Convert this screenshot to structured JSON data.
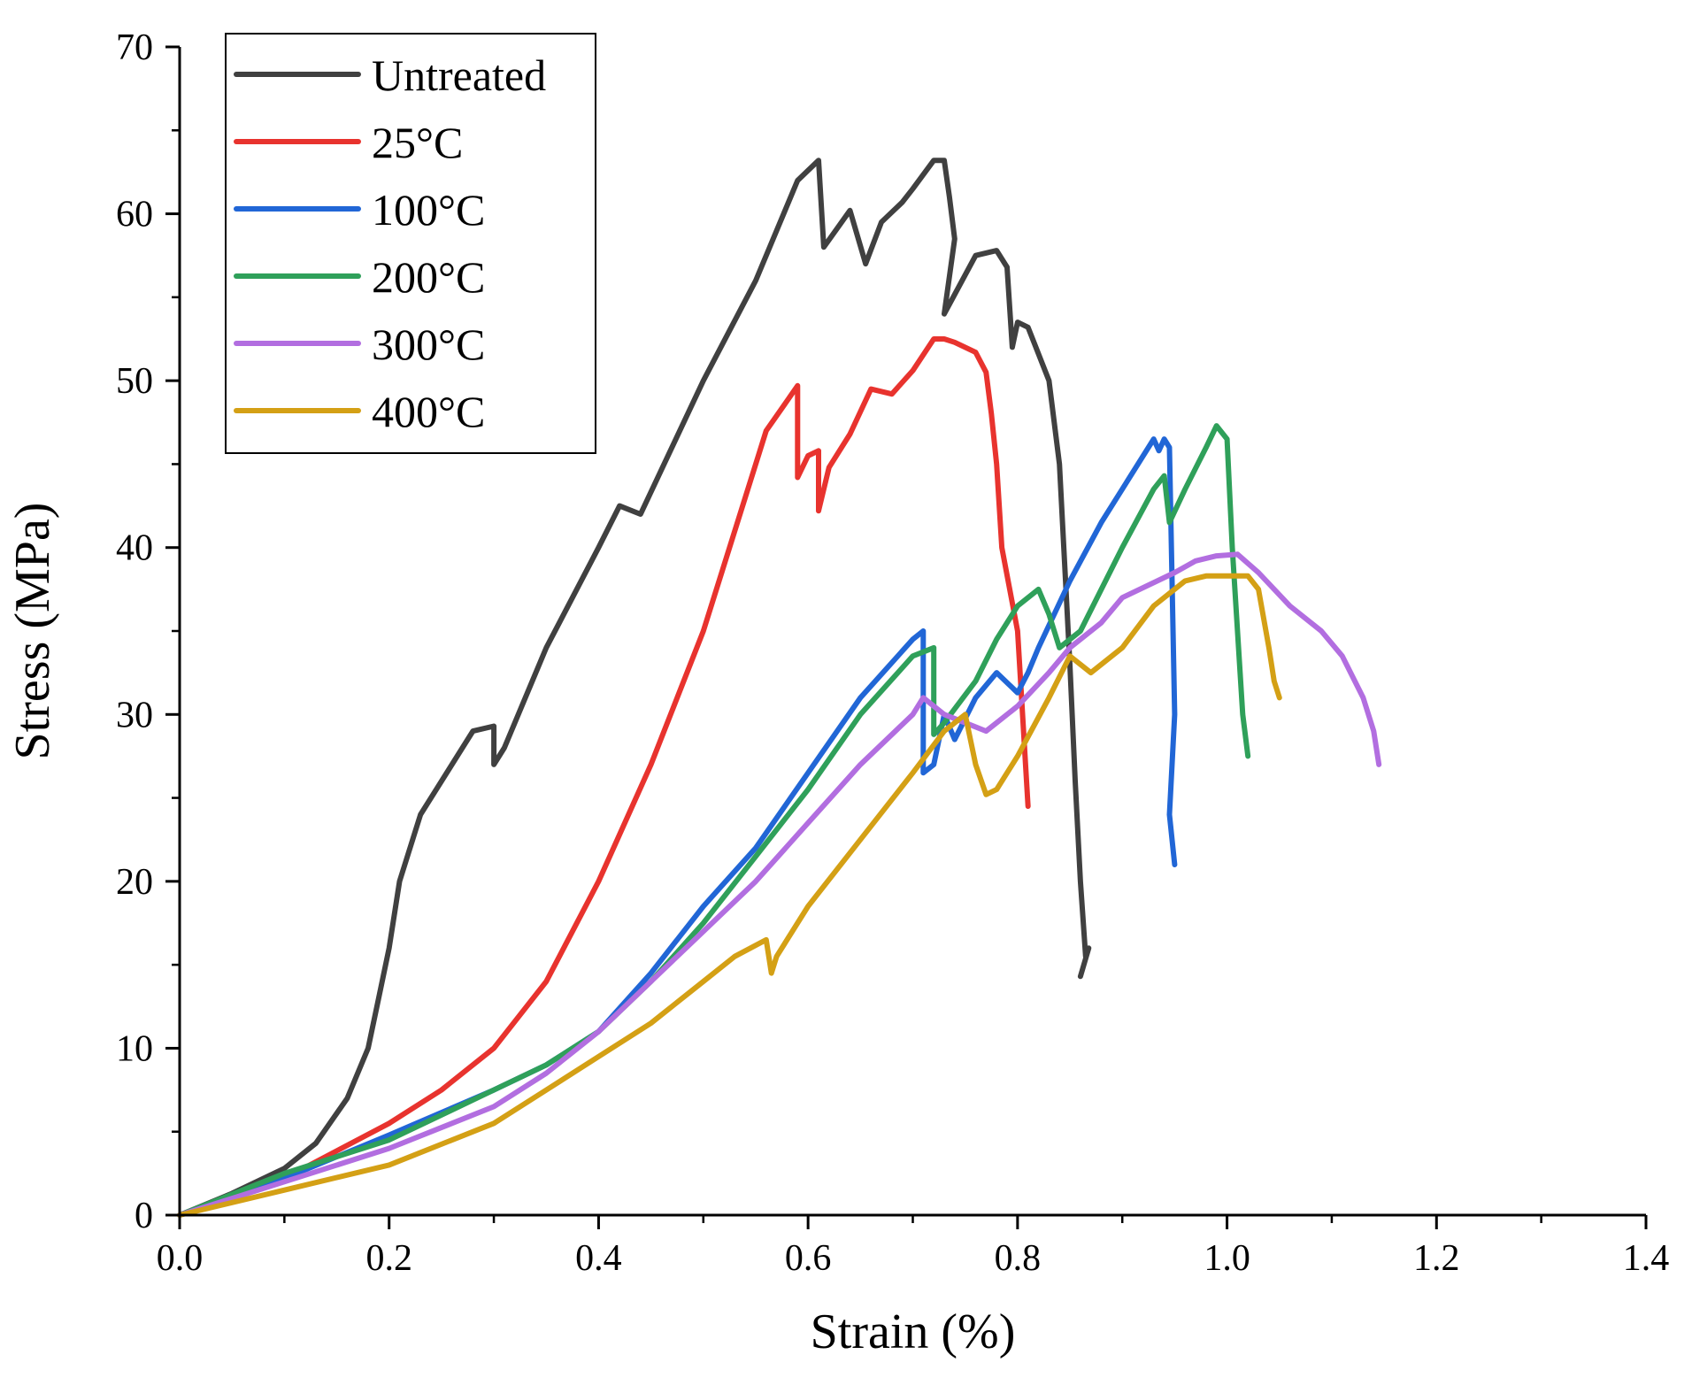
{
  "chart_data": {
    "type": "line",
    "title": "",
    "xlabel": "Strain (%)",
    "ylabel": "Stress (MPa)",
    "xlim": [
      0,
      1.4
    ],
    "ylim": [
      0,
      70
    ],
    "xticks": [
      0.0,
      0.2,
      0.4,
      0.6,
      0.8,
      1.0,
      1.2,
      1.4
    ],
    "xtick_labels": [
      "0.0",
      "0.2",
      "0.4",
      "0.6",
      "0.8",
      "1.0",
      "1.2",
      "1.4"
    ],
    "yticks": [
      0,
      10,
      20,
      30,
      40,
      50,
      60,
      70
    ],
    "ytick_labels": [
      "0",
      "10",
      "20",
      "30",
      "40",
      "50",
      "60",
      "70"
    ],
    "grid": false,
    "legend_position": "top-left",
    "series": [
      {
        "name": "Untreated",
        "color": "#404040",
        "x": [
          0.0,
          0.05,
          0.1,
          0.13,
          0.16,
          0.18,
          0.19,
          0.2,
          0.21,
          0.23,
          0.26,
          0.28,
          0.3,
          0.3,
          0.31,
          0.35,
          0.4,
          0.42,
          0.44,
          0.5,
          0.55,
          0.59,
          0.61,
          0.615,
          0.64,
          0.655,
          0.67,
          0.69,
          0.7,
          0.72,
          0.73,
          0.735,
          0.74,
          0.73,
          0.76,
          0.78,
          0.79,
          0.795,
          0.8,
          0.81,
          0.83,
          0.84,
          0.85,
          0.855,
          0.86,
          0.865,
          0.868,
          0.86
        ],
        "y": [
          0,
          1.3,
          2.8,
          4.3,
          7,
          10,
          13,
          16,
          20,
          24,
          27,
          29,
          29.3,
          27,
          28,
          34,
          40,
          42.5,
          42,
          50,
          56,
          62,
          63.2,
          58,
          60.2,
          57,
          59.5,
          60.7,
          61.5,
          63.2,
          63.2,
          61,
          58.5,
          54,
          57.5,
          57.8,
          56.8,
          52,
          53.5,
          53.2,
          50,
          45,
          33,
          26,
          20,
          15.5,
          16,
          14.3
        ]
      },
      {
        "name": "25°C",
        "color": "#e8332e",
        "x": [
          0.0,
          0.1,
          0.2,
          0.25,
          0.3,
          0.35,
          0.4,
          0.45,
          0.5,
          0.55,
          0.56,
          0.58,
          0.59,
          0.59,
          0.6,
          0.61,
          0.61,
          0.62,
          0.64,
          0.66,
          0.68,
          0.7,
          0.72,
          0.73,
          0.74,
          0.76,
          0.77,
          0.775,
          0.78,
          0.785,
          0.8,
          0.81
        ],
        "y": [
          0,
          2.2,
          5.5,
          7.5,
          10,
          14,
          20,
          27,
          35,
          45,
          47,
          48.8,
          49.7,
          44.2,
          45.5,
          45.8,
          42.2,
          44.8,
          46.8,
          49.5,
          49.2,
          50.6,
          52.5,
          52.5,
          52.3,
          51.7,
          50.5,
          48,
          45,
          40,
          35,
          24.5
        ]
      },
      {
        "name": "100°C",
        "color": "#2166d6",
        "x": [
          0.0,
          0.1,
          0.2,
          0.3,
          0.35,
          0.4,
          0.45,
          0.5,
          0.55,
          0.6,
          0.65,
          0.7,
          0.71,
          0.71,
          0.72,
          0.73,
          0.74,
          0.76,
          0.78,
          0.8,
          0.81,
          0.82,
          0.85,
          0.88,
          0.9,
          0.93,
          0.935,
          0.94,
          0.945,
          0.95,
          0.945,
          0.95
        ],
        "y": [
          0,
          2.2,
          4.8,
          7.5,
          9,
          11,
          14.5,
          18.5,
          22,
          26.5,
          31,
          34.5,
          35,
          26.5,
          27,
          30,
          28.5,
          31,
          32.5,
          31.3,
          32.5,
          34,
          38,
          41.5,
          43.5,
          46.5,
          45.8,
          46.5,
          46,
          30,
          24,
          21
        ]
      },
      {
        "name": "200°C",
        "color": "#2fa05a",
        "x": [
          0.0,
          0.1,
          0.2,
          0.3,
          0.35,
          0.4,
          0.45,
          0.5,
          0.55,
          0.6,
          0.65,
          0.7,
          0.72,
          0.72,
          0.73,
          0.76,
          0.78,
          0.8,
          0.82,
          0.83,
          0.84,
          0.86,
          0.9,
          0.93,
          0.94,
          0.945,
          0.96,
          0.98,
          0.99,
          1.0,
          1.005,
          1.01,
          1.015,
          1.02
        ],
        "y": [
          0,
          2.5,
          4.5,
          7.5,
          9,
          11,
          14,
          17.5,
          21.5,
          25.5,
          30,
          33.5,
          34,
          28.8,
          29.5,
          32,
          34.5,
          36.5,
          37.5,
          36,
          34,
          35,
          40,
          43.5,
          44.3,
          41.5,
          43.5,
          46,
          47.3,
          46.5,
          40,
          35,
          30,
          27.5
        ]
      },
      {
        "name": "300°C",
        "color": "#b26ee0",
        "x": [
          0.0,
          0.1,
          0.2,
          0.3,
          0.35,
          0.4,
          0.45,
          0.5,
          0.55,
          0.6,
          0.65,
          0.7,
          0.71,
          0.73,
          0.75,
          0.77,
          0.8,
          0.83,
          0.85,
          0.88,
          0.9,
          0.95,
          0.97,
          0.99,
          1.01,
          1.03,
          1.06,
          1.09,
          1.11,
          1.13,
          1.14,
          1.145
        ],
        "y": [
          0,
          2,
          4,
          6.5,
          8.5,
          11,
          14,
          17,
          20,
          23.5,
          27,
          30,
          31,
          30,
          29.5,
          29,
          30.5,
          32.5,
          34,
          35.5,
          37,
          38.5,
          39.2,
          39.5,
          39.6,
          38.5,
          36.5,
          35,
          33.5,
          31,
          29,
          27
        ]
      },
      {
        "name": "400°C",
        "color": "#d4a015",
        "x": [
          0.0,
          0.1,
          0.2,
          0.3,
          0.35,
          0.4,
          0.45,
          0.5,
          0.53,
          0.56,
          0.565,
          0.57,
          0.6,
          0.65,
          0.7,
          0.73,
          0.75,
          0.76,
          0.77,
          0.78,
          0.79,
          0.8,
          0.83,
          0.85,
          0.87,
          0.9,
          0.93,
          0.96,
          0.98,
          1.0,
          1.02,
          1.03,
          1.04,
          1.045,
          1.05
        ],
        "y": [
          0,
          1.5,
          3,
          5.5,
          7.5,
          9.5,
          11.5,
          14,
          15.5,
          16.5,
          14.5,
          15.5,
          18.5,
          22.5,
          26.5,
          29,
          30,
          27,
          25.2,
          25.5,
          26.5,
          27.5,
          31,
          33.5,
          32.5,
          34,
          36.5,
          38,
          38.3,
          38.3,
          38.3,
          37.5,
          34,
          32,
          31
        ]
      }
    ]
  }
}
